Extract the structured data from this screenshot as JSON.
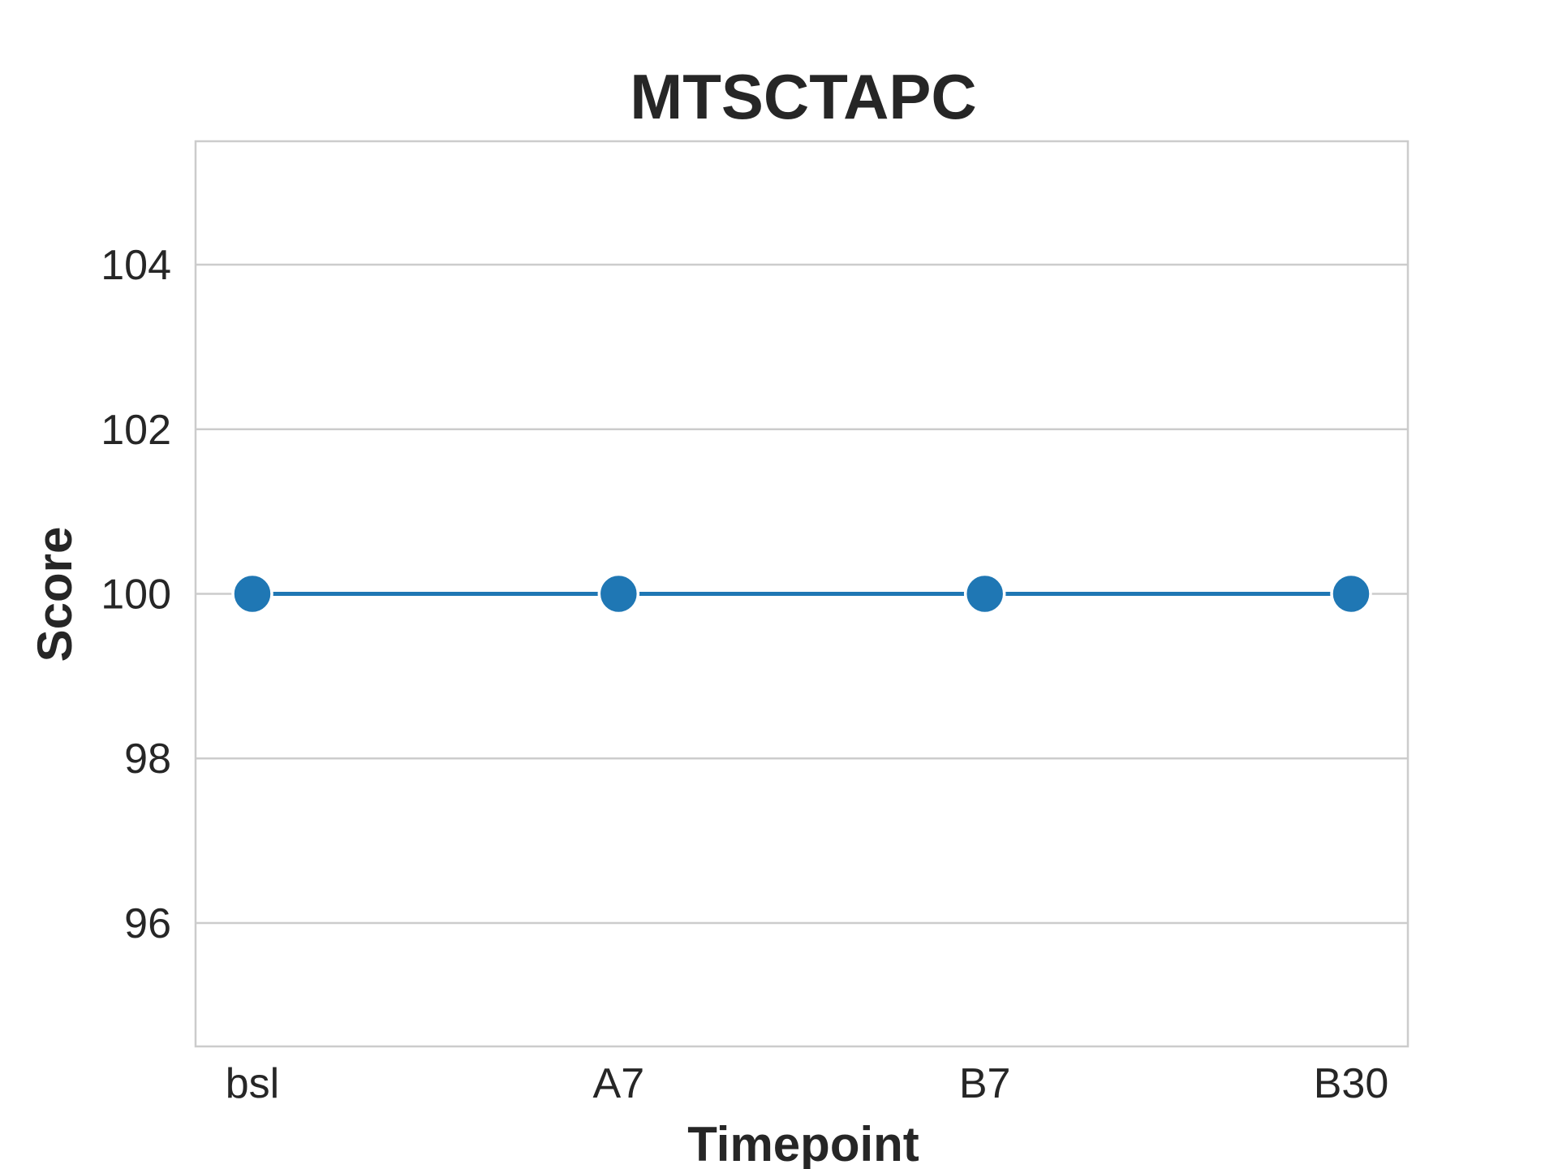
{
  "chart_data": {
    "type": "line",
    "title": "MTSCTAPC",
    "xlabel": "Timepoint",
    "ylabel": "Score",
    "categories": [
      "bsl",
      "A7",
      "B7",
      "B30"
    ],
    "series": [
      {
        "values": [
          100,
          100,
          100,
          100
        ]
      }
    ],
    "ylim": [
      94.5,
      105.5
    ],
    "yticks": [
      96,
      98,
      100,
      102,
      104
    ],
    "grid": "horizontal",
    "colors": {
      "line": "#1f77b4",
      "grid": "#cccccc",
      "frame": "#cccccc",
      "text": "#262626"
    }
  }
}
